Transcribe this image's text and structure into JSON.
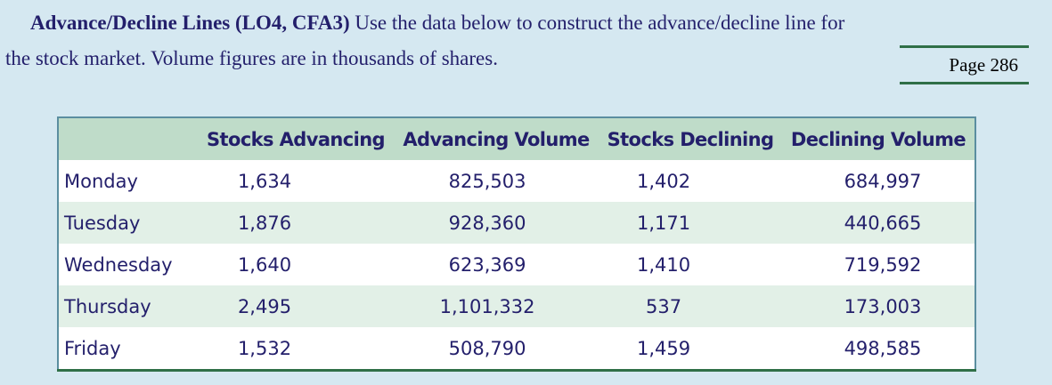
{
  "problem": {
    "heading": "Advance/Decline Lines (LO4, CFA3)",
    "text_line1": "Use the data below to construct the advance/decline line for",
    "text_line2": "the stock market. Volume figures are in thousands of shares."
  },
  "page_ref": "Page 286",
  "table": {
    "headers": [
      "",
      "Stocks Advancing",
      "Advancing Volume",
      "Stocks Declining",
      "Declining Volume"
    ],
    "rows": [
      {
        "day": "Monday",
        "adv": "1,634",
        "adv_vol": "825,503",
        "dec": "1,402",
        "dec_vol": "684,997"
      },
      {
        "day": "Tuesday",
        "adv": "1,876",
        "adv_vol": "928,360",
        "dec": "1,171",
        "dec_vol": "440,665"
      },
      {
        "day": "Wednesday",
        "adv": "1,640",
        "adv_vol": "623,369",
        "dec": "1,410",
        "dec_vol": "719,592"
      },
      {
        "day": "Thursday",
        "adv": "2,495",
        "adv_vol": "1,101,332",
        "dec": "537",
        "dec_vol": "173,003"
      },
      {
        "day": "Friday",
        "adv": "1,532",
        "adv_vol": "508,790",
        "dec": "1,459",
        "dec_vol": "498,585"
      }
    ]
  }
}
